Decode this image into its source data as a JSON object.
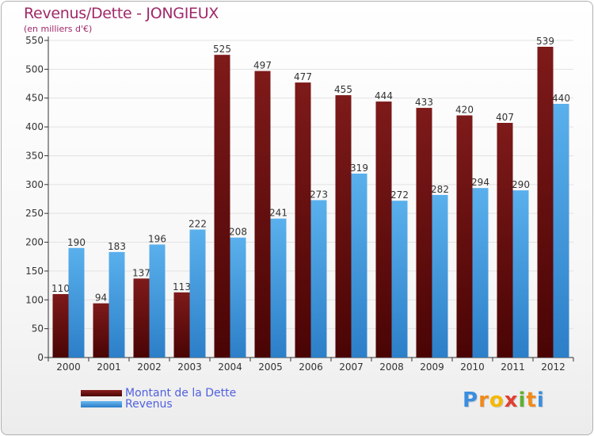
{
  "title": "Revenus/Dette - JONGIEUX",
  "subtitle": "(en milliers d'€)",
  "logo_text": "Proxiti",
  "colors": {
    "title": "#a02868",
    "dette": "#6b1010",
    "revenus": "#4aa3e6",
    "legend_text": "#5060e0",
    "axis": "#333333",
    "grid": "#e2e2e2"
  },
  "legend": [
    {
      "label": "Montant de la Dette",
      "color": "#6b1010"
    },
    {
      "label": "Revenus",
      "color": "#4aa3e6"
    }
  ],
  "chart_data": {
    "type": "bar",
    "categories": [
      "2000",
      "2001",
      "2002",
      "2003",
      "2004",
      "2005",
      "2006",
      "2007",
      "2008",
      "2009",
      "2010",
      "2011",
      "2012"
    ],
    "series": [
      {
        "name": "Montant de la Dette",
        "values": [
          110,
          94,
          137,
          113,
          525,
          497,
          477,
          455,
          444,
          433,
          420,
          407,
          539
        ]
      },
      {
        "name": "Revenus",
        "values": [
          190,
          183,
          196,
          222,
          208,
          241,
          273,
          319,
          272,
          282,
          294,
          290,
          440
        ]
      }
    ],
    "ylim": [
      0,
      550
    ],
    "yticks": [
      0,
      50,
      100,
      150,
      200,
      250,
      300,
      350,
      400,
      450,
      500,
      550
    ],
    "grid": true
  }
}
